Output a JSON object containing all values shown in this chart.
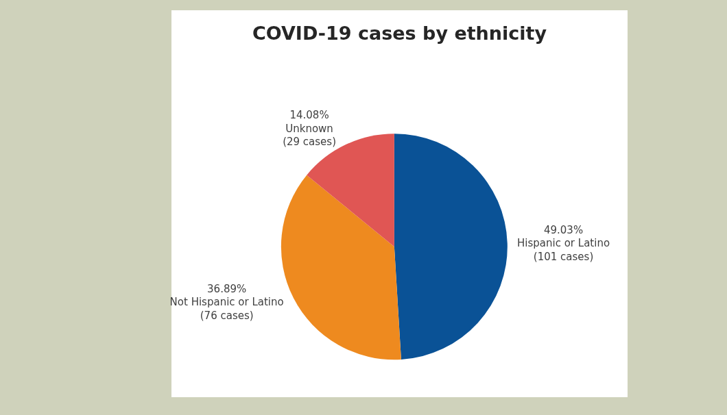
{
  "chart_data": {
    "type": "pie",
    "title": "COVID-19 cases by ethnicity",
    "categories": [
      "Hispanic or Latino",
      "Not Hispanic or Latino",
      "Unknown"
    ],
    "values": [
      49.03,
      36.89,
      14.08
    ],
    "colors": [
      "#0a5296",
      "#ee8a1f",
      "#e05654"
    ],
    "value_labels": [
      "49.03%",
      "36.89%",
      "14.08%"
    ],
    "annotations": [
      "(101 cases)",
      "(76 cases)",
      "(29 cases)"
    ],
    "legend": false
  }
}
